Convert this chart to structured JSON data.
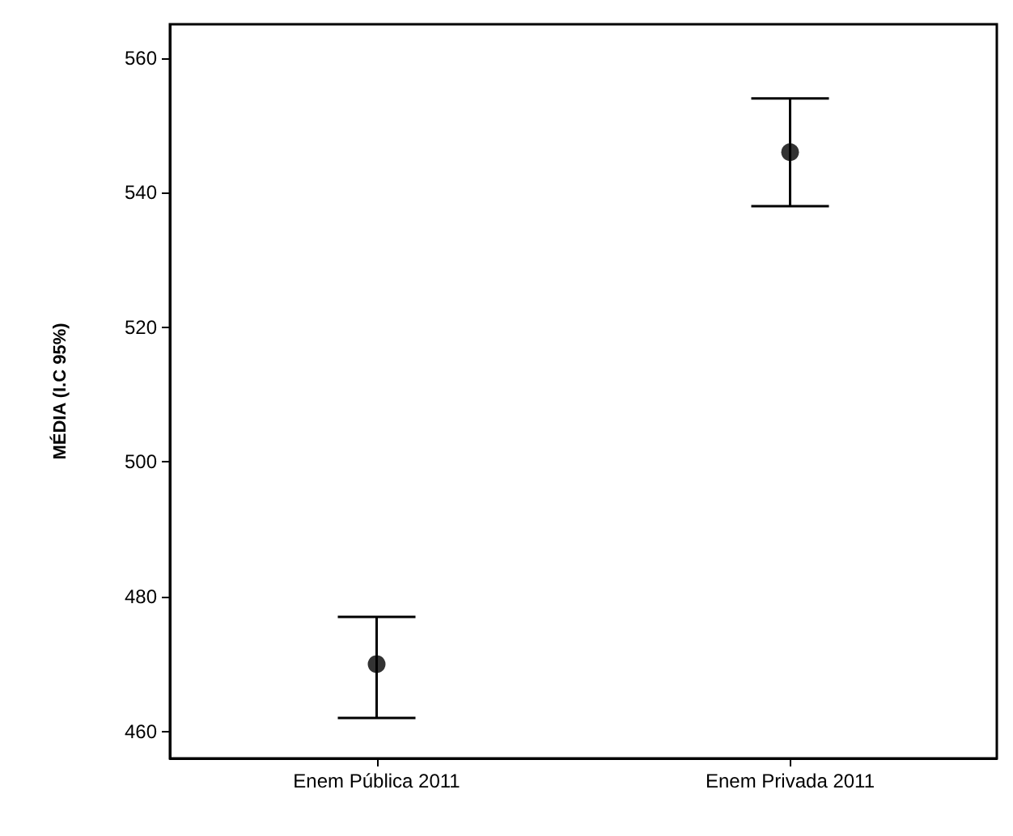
{
  "chart_data": {
    "type": "scatter",
    "ylabel": "MÉDIA (I.C 95%)",
    "categories": [
      "Enem Pública 2011",
      "Enem Privada 2011"
    ],
    "values": [
      470,
      546
    ],
    "errors": [
      [
        462,
        477
      ],
      [
        538,
        554
      ]
    ],
    "color": "#000000",
    "marker": "circle",
    "ylim": [
      456,
      565
    ],
    "yticks": [
      460,
      480,
      500,
      520,
      540,
      560
    ],
    "grid": false
  }
}
